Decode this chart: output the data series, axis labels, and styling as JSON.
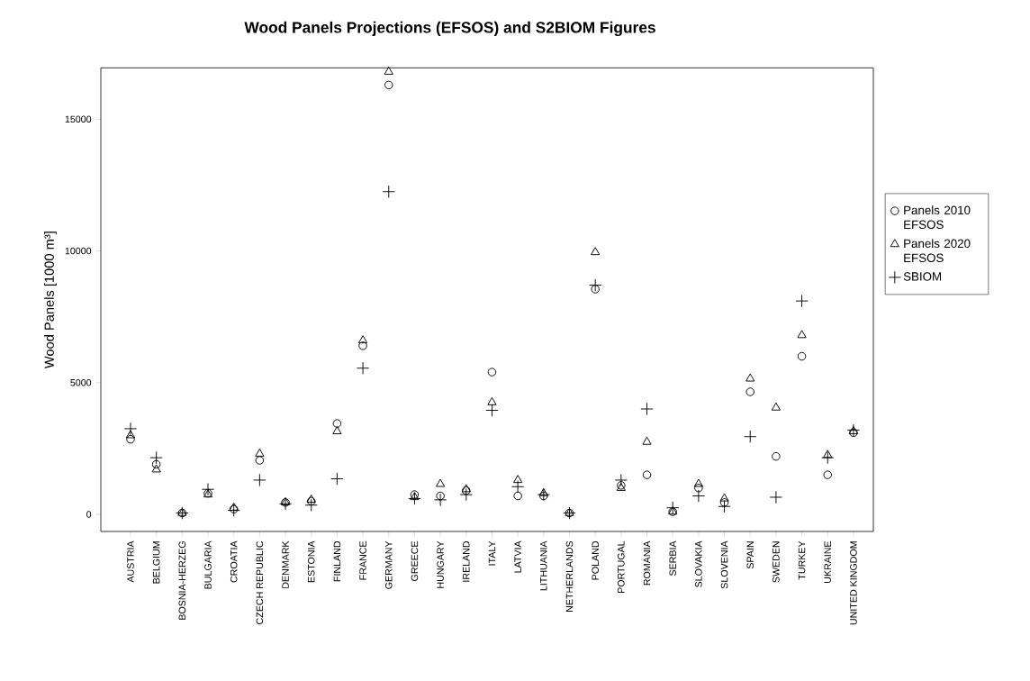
{
  "chart_data": {
    "type": "scatter",
    "title": "Wood Panels Projections (EFSOS) and S2BIOM Figures",
    "ylabel": "Wood Panels [1000 m³]",
    "categories": [
      "AUSTRIA",
      "BELGIUM",
      "BOSNIA-HERZEG",
      "BULGARIA",
      "CROATIA",
      "CZECH REPUBLIC",
      "DENMARK",
      "ESTONIA",
      "FINLAND",
      "FRANCE",
      "GERMANY",
      "GREECE",
      "HUNGARY",
      "IRELAND",
      "ITALY",
      "LATVIA",
      "LITHUANIA",
      "NETHERLANDS",
      "POLAND",
      "PORTUGAL",
      "ROMANIA",
      "SERBIA",
      "SLOVAKIA",
      "SLOVENIA",
      "SPAIN",
      "SWEDEN",
      "TURKEY",
      "UKRAINE",
      "UNITED KINGDOM"
    ],
    "series": [
      {
        "name": "Panels 2010 EFSOS",
        "color": "#000000",
        "marker": "circle",
        "values": [
          2850,
          1900,
          50,
          800,
          200,
          2050,
          450,
          500,
          3450,
          6400,
          16300,
          750,
          700,
          900,
          5400,
          700,
          700,
          50,
          8550,
          1100,
          1500,
          100,
          1000,
          450,
          4650,
          2200,
          6000,
          1500,
          3100
        ]
      },
      {
        "name": "Panels 2020 EFSOS",
        "color": "#000000",
        "marker": "triangle",
        "values": [
          3000,
          1700,
          50,
          750,
          250,
          2300,
          450,
          550,
          3150,
          6600,
          16800,
          650,
          1150,
          950,
          4250,
          1300,
          800,
          50,
          9950,
          1000,
          2750,
          100,
          1150,
          600,
          5150,
          4050,
          6800,
          2250,
          3150
        ]
      },
      {
        "name": "SBIOM",
        "color": "#000000",
        "marker": "cross",
        "values": [
          3250,
          2150,
          50,
          950,
          150,
          1300,
          400,
          350,
          1350,
          5550,
          12250,
          600,
          550,
          750,
          3950,
          1050,
          750,
          50,
          8700,
          1300,
          4000,
          250,
          700,
          300,
          2950,
          650,
          8100,
          2150,
          3200
        ]
      }
    ],
    "ylim": [
      -650,
      16950
    ],
    "yticks": [
      0,
      5000,
      10000,
      15000
    ],
    "grid": false,
    "legend": "right"
  }
}
